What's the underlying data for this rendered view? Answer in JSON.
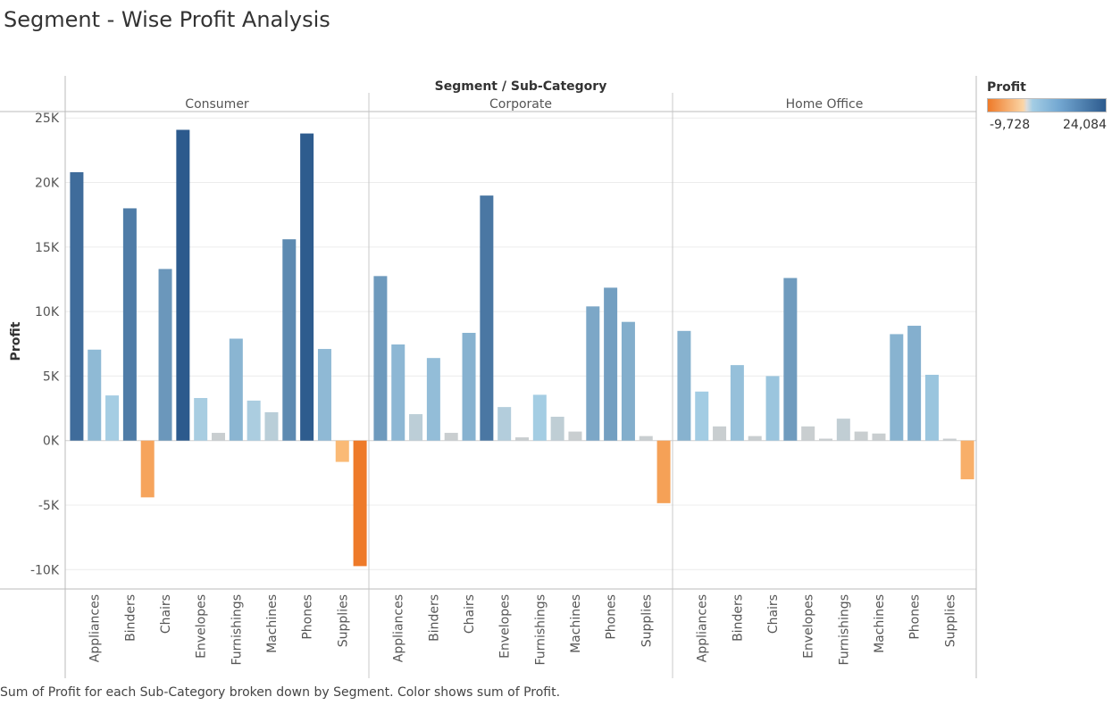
{
  "title": "Segment - Wise Profit Analysis",
  "footer": "Sum of Profit for each Sub-Category broken down by Segment.  Color shows sum of Profit.",
  "legend": {
    "title": "Profit",
    "min_label": "-9,728",
    "max_label": "24,084"
  },
  "colors": {
    "negative_strong": "#ee7a29",
    "negative_light": "#fbc17e",
    "neutral": "#c9ced0",
    "positive_light": "#a3cde4",
    "positive_strong": "#2c5a8d"
  },
  "chart_data": {
    "type": "bar",
    "header": "Segment / Sub-Category",
    "ylabel": "Profit",
    "ylim": [
      -11500,
      25500
    ],
    "yticks": [
      25000,
      20000,
      15000,
      10000,
      5000,
      0,
      -5000,
      -10000
    ],
    "ytick_labels": [
      "25K",
      "20K",
      "15K",
      "10K",
      "5K",
      "0K",
      "-5K",
      "-10K"
    ],
    "color_range": [
      -9728,
      24084
    ],
    "grid": true,
    "legend_position": "top-right",
    "panels": [
      {
        "segment": "Consumer",
        "bars": [
          {
            "category": "",
            "value": 20800
          },
          {
            "category": "Appliances",
            "value": 7050
          },
          {
            "category": "",
            "value": 3500
          },
          {
            "category": "Binders",
            "value": 18000
          },
          {
            "category": "",
            "value": -4400
          },
          {
            "category": "Chairs",
            "value": 13300
          },
          {
            "category": "",
            "value": 24084
          },
          {
            "category": "Envelopes",
            "value": 3300
          },
          {
            "category": "",
            "value": 600
          },
          {
            "category": "Furnishings",
            "value": 7900
          },
          {
            "category": "",
            "value": 3100
          },
          {
            "category": "Machines",
            "value": 2200
          },
          {
            "category": "",
            "value": 15600
          },
          {
            "category": "Phones",
            "value": 23800
          },
          {
            "category": "",
            "value": 7100
          },
          {
            "category": "Supplies",
            "value": -1650
          },
          {
            "category": "",
            "value": -9728
          }
        ]
      },
      {
        "segment": "Corporate",
        "bars": [
          {
            "category": "",
            "value": 12750
          },
          {
            "category": "Appliances",
            "value": 7450
          },
          {
            "category": "",
            "value": 2050
          },
          {
            "category": "Binders",
            "value": 6400
          },
          {
            "category": "",
            "value": 600
          },
          {
            "category": "Chairs",
            "value": 8350
          },
          {
            "category": "",
            "value": 18990
          },
          {
            "category": "Envelopes",
            "value": 2600
          },
          {
            "category": "",
            "value": 250
          },
          {
            "category": "Furnishings",
            "value": 3550
          },
          {
            "category": "",
            "value": 1850
          },
          {
            "category": "Machines",
            "value": 700
          },
          {
            "category": "",
            "value": 10400
          },
          {
            "category": "Phones",
            "value": 11850
          },
          {
            "category": "",
            "value": 9200
          },
          {
            "category": "Supplies",
            "value": 350
          },
          {
            "category": "",
            "value": -4850
          }
        ]
      },
      {
        "segment": "Home Office",
        "bars": [
          {
            "category": "",
            "value": 8500
          },
          {
            "category": "Appliances",
            "value": 3800
          },
          {
            "category": "",
            "value": 1100
          },
          {
            "category": "Binders",
            "value": 5850
          },
          {
            "category": "",
            "value": 350
          },
          {
            "category": "Chairs",
            "value": 5000
          },
          {
            "category": "",
            "value": 12600
          },
          {
            "category": "Envelopes",
            "value": 1100
          },
          {
            "category": "",
            "value": 150
          },
          {
            "category": "Furnishings",
            "value": 1700
          },
          {
            "category": "",
            "value": 700
          },
          {
            "category": "Machines",
            "value": 550
          },
          {
            "category": "",
            "value": 8250
          },
          {
            "category": "Phones",
            "value": 8900
          },
          {
            "category": "",
            "value": 5100
          },
          {
            "category": "Supplies",
            "value": 150
          },
          {
            "category": "",
            "value": -3000
          }
        ]
      }
    ]
  }
}
